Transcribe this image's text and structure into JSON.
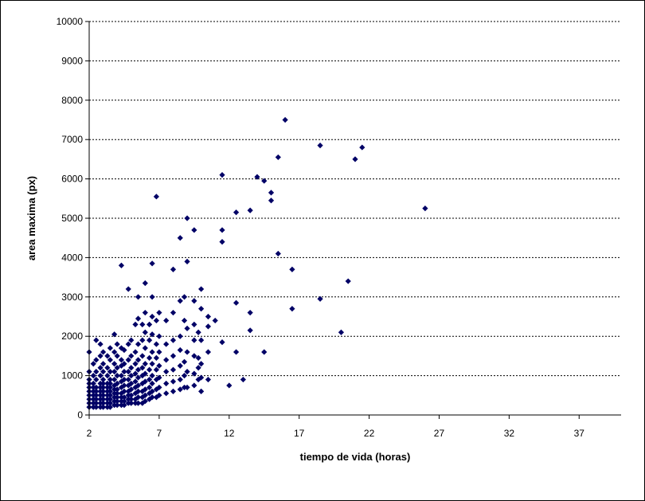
{
  "chart_data": {
    "type": "scatter",
    "title": "",
    "xlabel": "tiempo de vida (horas)",
    "ylabel": "area maxima (px)",
    "xlim": [
      2,
      40
    ],
    "ylim": [
      0,
      10000
    ],
    "x_ticks": [
      2,
      7,
      12,
      17,
      22,
      27,
      32,
      37
    ],
    "y_ticks": [
      0,
      1000,
      2000,
      3000,
      4000,
      5000,
      6000,
      7000,
      8000,
      9000,
      10000
    ],
    "grid": "horizontal dashed",
    "legend": "none",
    "marker": "diamond",
    "color": "#000066",
    "series": [
      {
        "points": [
          [
            2.0,
            200
          ],
          [
            2.0,
            300
          ],
          [
            2.0,
            400
          ],
          [
            2.0,
            500
          ],
          [
            2.0,
            600
          ],
          [
            2.0,
            700
          ],
          [
            2.0,
            800
          ],
          [
            2.0,
            900
          ],
          [
            2.0,
            1100
          ],
          [
            2.0,
            1600
          ],
          [
            2.3,
            200
          ],
          [
            2.3,
            300
          ],
          [
            2.3,
            400
          ],
          [
            2.3,
            500
          ],
          [
            2.3,
            600
          ],
          [
            2.3,
            700
          ],
          [
            2.3,
            800
          ],
          [
            2.3,
            1000
          ],
          [
            2.3,
            1300
          ],
          [
            2.5,
            200
          ],
          [
            2.5,
            300
          ],
          [
            2.5,
            400
          ],
          [
            2.5,
            500
          ],
          [
            2.5,
            600
          ],
          [
            2.5,
            700
          ],
          [
            2.5,
            900
          ],
          [
            2.5,
            1100
          ],
          [
            2.5,
            1400
          ],
          [
            2.5,
            1900
          ],
          [
            2.8,
            200
          ],
          [
            2.8,
            300
          ],
          [
            2.8,
            400
          ],
          [
            2.8,
            500
          ],
          [
            2.8,
            600
          ],
          [
            2.8,
            700
          ],
          [
            2.8,
            800
          ],
          [
            2.8,
            1000
          ],
          [
            2.8,
            1200
          ],
          [
            2.8,
            1500
          ],
          [
            2.8,
            1800
          ],
          [
            3.0,
            200
          ],
          [
            3.0,
            300
          ],
          [
            3.0,
            400
          ],
          [
            3.0,
            500
          ],
          [
            3.0,
            600
          ],
          [
            3.0,
            700
          ],
          [
            3.0,
            800
          ],
          [
            3.0,
            900
          ],
          [
            3.0,
            1100
          ],
          [
            3.0,
            1300
          ],
          [
            3.0,
            1600
          ],
          [
            3.3,
            200
          ],
          [
            3.3,
            300
          ],
          [
            3.3,
            400
          ],
          [
            3.3,
            500
          ],
          [
            3.3,
            600
          ],
          [
            3.3,
            700
          ],
          [
            3.3,
            800
          ],
          [
            3.3,
            1000
          ],
          [
            3.3,
            1200
          ],
          [
            3.3,
            1500
          ],
          [
            3.5,
            200
          ],
          [
            3.5,
            300
          ],
          [
            3.5,
            400
          ],
          [
            3.5,
            500
          ],
          [
            3.5,
            600
          ],
          [
            3.5,
            700
          ],
          [
            3.5,
            800
          ],
          [
            3.5,
            900
          ],
          [
            3.5,
            1100
          ],
          [
            3.5,
            1400
          ],
          [
            3.5,
            1700
          ],
          [
            3.8,
            250
          ],
          [
            3.8,
            350
          ],
          [
            3.8,
            450
          ],
          [
            3.8,
            550
          ],
          [
            3.8,
            650
          ],
          [
            3.8,
            750
          ],
          [
            3.8,
            900
          ],
          [
            3.8,
            1100
          ],
          [
            3.8,
            1300
          ],
          [
            3.8,
            1600
          ],
          [
            3.8,
            2050
          ],
          [
            4.0,
            250
          ],
          [
            4.0,
            350
          ],
          [
            4.0,
            450
          ],
          [
            4.0,
            550
          ],
          [
            4.0,
            650
          ],
          [
            4.0,
            800
          ],
          [
            4.0,
            1000
          ],
          [
            4.0,
            1200
          ],
          [
            4.0,
            1500
          ],
          [
            4.0,
            1800
          ],
          [
            4.3,
            250
          ],
          [
            4.3,
            350
          ],
          [
            4.3,
            450
          ],
          [
            4.3,
            550
          ],
          [
            4.3,
            700
          ],
          [
            4.3,
            850
          ],
          [
            4.3,
            1000
          ],
          [
            4.3,
            1250
          ],
          [
            4.3,
            1400
          ],
          [
            4.3,
            1700
          ],
          [
            4.3,
            3800
          ],
          [
            4.5,
            250
          ],
          [
            4.5,
            350
          ],
          [
            4.5,
            450
          ],
          [
            4.5,
            600
          ],
          [
            4.5,
            750
          ],
          [
            4.5,
            900
          ],
          [
            4.5,
            1100
          ],
          [
            4.5,
            1300
          ],
          [
            4.5,
            1650
          ],
          [
            4.8,
            300
          ],
          [
            4.8,
            400
          ],
          [
            4.8,
            500
          ],
          [
            4.8,
            600
          ],
          [
            4.8,
            750
          ],
          [
            4.8,
            900
          ],
          [
            4.8,
            1100
          ],
          [
            4.8,
            1400
          ],
          [
            4.8,
            1800
          ],
          [
            4.8,
            3200
          ],
          [
            5.0,
            300
          ],
          [
            5.0,
            400
          ],
          [
            5.0,
            500
          ],
          [
            5.0,
            650
          ],
          [
            5.0,
            800
          ],
          [
            5.0,
            1000
          ],
          [
            5.0,
            1200
          ],
          [
            5.0,
            1500
          ],
          [
            5.0,
            1900
          ],
          [
            5.3,
            300
          ],
          [
            5.3,
            400
          ],
          [
            5.3,
            550
          ],
          [
            5.3,
            700
          ],
          [
            5.3,
            850
          ],
          [
            5.3,
            1050
          ],
          [
            5.3,
            1300
          ],
          [
            5.3,
            1600
          ],
          [
            5.3,
            2300
          ],
          [
            5.5,
            300
          ],
          [
            5.5,
            450
          ],
          [
            5.5,
            600
          ],
          [
            5.5,
            750
          ],
          [
            5.5,
            950
          ],
          [
            5.5,
            1150
          ],
          [
            5.5,
            1400
          ],
          [
            5.5,
            1800
          ],
          [
            5.5,
            2450
          ],
          [
            5.5,
            3000
          ],
          [
            5.8,
            300
          ],
          [
            5.8,
            450
          ],
          [
            5.8,
            600
          ],
          [
            5.8,
            800
          ],
          [
            5.8,
            1000
          ],
          [
            5.8,
            1200
          ],
          [
            5.8,
            1500
          ],
          [
            5.8,
            1900
          ],
          [
            5.8,
            2300
          ],
          [
            6.0,
            350
          ],
          [
            6.0,
            500
          ],
          [
            6.0,
            650
          ],
          [
            6.0,
            850
          ],
          [
            6.0,
            1050
          ],
          [
            6.0,
            1300
          ],
          [
            6.0,
            1700
          ],
          [
            6.0,
            2100
          ],
          [
            6.0,
            2600
          ],
          [
            6.0,
            3350
          ],
          [
            6.3,
            400
          ],
          [
            6.3,
            550
          ],
          [
            6.3,
            700
          ],
          [
            6.3,
            900
          ],
          [
            6.3,
            1150
          ],
          [
            6.3,
            1450
          ],
          [
            6.3,
            1900
          ],
          [
            6.3,
            2300
          ],
          [
            6.5,
            450
          ],
          [
            6.5,
            600
          ],
          [
            6.5,
            800
          ],
          [
            6.5,
            1000
          ],
          [
            6.5,
            1300
          ],
          [
            6.5,
            1600
          ],
          [
            6.5,
            2050
          ],
          [
            6.5,
            2500
          ],
          [
            6.5,
            3000
          ],
          [
            6.5,
            3850
          ],
          [
            6.8,
            450
          ],
          [
            6.8,
            650
          ],
          [
            6.8,
            900
          ],
          [
            6.8,
            1150
          ],
          [
            6.8,
            1450
          ],
          [
            6.8,
            1800
          ],
          [
            6.8,
            2400
          ],
          [
            6.8,
            5550
          ],
          [
            7.0,
            500
          ],
          [
            7.0,
            700
          ],
          [
            7.0,
            950
          ],
          [
            7.0,
            1250
          ],
          [
            7.0,
            1600
          ],
          [
            7.0,
            2000
          ],
          [
            7.0,
            2600
          ],
          [
            7.5,
            550
          ],
          [
            7.5,
            800
          ],
          [
            7.5,
            1100
          ],
          [
            7.5,
            1400
          ],
          [
            7.5,
            1800
          ],
          [
            7.5,
            2400
          ],
          [
            8.0,
            600
          ],
          [
            8.0,
            850
          ],
          [
            8.0,
            1150
          ],
          [
            8.0,
            1500
          ],
          [
            8.0,
            1900
          ],
          [
            8.0,
            2600
          ],
          [
            8.0,
            3700
          ],
          [
            8.5,
            650
          ],
          [
            8.5,
            900
          ],
          [
            8.5,
            1250
          ],
          [
            8.5,
            1650
          ],
          [
            8.5,
            2000
          ],
          [
            8.5,
            2900
          ],
          [
            8.5,
            4500
          ],
          [
            8.8,
            700
          ],
          [
            8.8,
            1000
          ],
          [
            8.8,
            1350
          ],
          [
            8.8,
            2400
          ],
          [
            8.8,
            3000
          ],
          [
            9.0,
            700
          ],
          [
            9.0,
            1100
          ],
          [
            9.0,
            1600
          ],
          [
            9.0,
            2200
          ],
          [
            9.0,
            3900
          ],
          [
            9.0,
            5000
          ],
          [
            9.5,
            750
          ],
          [
            9.5,
            1050
          ],
          [
            9.5,
            1500
          ],
          [
            9.5,
            1900
          ],
          [
            9.5,
            2300
          ],
          [
            9.5,
            2900
          ],
          [
            9.5,
            4700
          ],
          [
            9.8,
            900
          ],
          [
            9.8,
            1200
          ],
          [
            9.8,
            1450
          ],
          [
            9.8,
            2100
          ],
          [
            10.0,
            600
          ],
          [
            10.0,
            950
          ],
          [
            10.0,
            1300
          ],
          [
            10.0,
            1900
          ],
          [
            10.0,
            2700
          ],
          [
            10.0,
            3200
          ],
          [
            10.5,
            900
          ],
          [
            10.5,
            1600
          ],
          [
            10.5,
            2250
          ],
          [
            10.5,
            2500
          ],
          [
            11.0,
            2400
          ],
          [
            11.5,
            1850
          ],
          [
            11.5,
            4700
          ],
          [
            11.5,
            4400
          ],
          [
            11.5,
            6100
          ],
          [
            12.0,
            750
          ],
          [
            12.5,
            1600
          ],
          [
            12.5,
            2850
          ],
          [
            12.5,
            5150
          ],
          [
            13.0,
            900
          ],
          [
            13.5,
            2150
          ],
          [
            13.5,
            2600
          ],
          [
            13.5,
            5200
          ],
          [
            14.0,
            6050
          ],
          [
            14.5,
            1600
          ],
          [
            14.5,
            5950
          ],
          [
            15.0,
            5450
          ],
          [
            15.0,
            5650
          ],
          [
            15.5,
            4100
          ],
          [
            15.5,
            6550
          ],
          [
            16.0,
            7500
          ],
          [
            16.5,
            2700
          ],
          [
            16.5,
            3700
          ],
          [
            18.5,
            2950
          ],
          [
            18.5,
            6850
          ],
          [
            20.0,
            2100
          ],
          [
            20.5,
            3400
          ],
          [
            21.0,
            6500
          ],
          [
            21.5,
            6800
          ],
          [
            26.0,
            5250
          ]
        ]
      }
    ]
  }
}
